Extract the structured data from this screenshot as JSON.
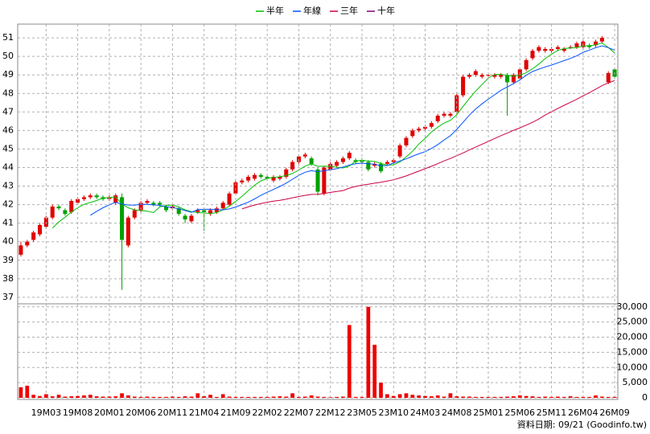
{
  "chart_data": [
    {
      "type": "candlestick",
      "open": [
        39.3,
        39.8,
        40.1,
        40.4,
        40.8,
        41.3,
        41.9,
        41.7,
        41.6,
        42.1,
        42.3,
        42.4,
        42.5,
        42.4,
        42.3,
        42.1,
        42.4,
        39.8,
        41.3,
        41.7,
        42.1,
        42.1,
        42.1,
        41.9,
        41.8,
        41.8,
        41.4,
        41.1,
        41.6,
        41.7,
        41.5,
        41.6,
        41.8,
        42.0,
        42.6,
        43.2,
        43.3,
        43.4,
        43.6,
        43.5,
        43.3,
        43.4,
        43.5,
        43.9,
        44.3,
        44.6,
        44.5,
        43.9,
        42.6,
        43.9,
        44.1,
        44.3,
        44.5,
        44.4,
        44.4,
        44.3,
        44.1,
        44.2,
        44.2,
        44.3,
        44.6,
        45.2,
        45.7,
        46.0,
        46.1,
        46.2,
        46.5,
        46.8,
        46.8,
        47.0,
        47.9,
        48.9,
        49.0,
        48.9,
        49.0,
        48.9,
        48.9,
        49.0,
        48.6,
        48.8,
        49.3,
        49.9,
        50.3,
        50.3,
        50.3,
        50.4,
        50.3,
        50.5,
        50.5,
        50.5,
        50.6,
        50.6,
        50.8,
        48.6,
        49.3
      ],
      "high": [
        40.0,
        40.1,
        40.6,
        41.0,
        41.4,
        42.0,
        42.0,
        41.8,
        42.3,
        42.4,
        42.5,
        42.6,
        42.6,
        42.5,
        42.5,
        42.6,
        42.6,
        41.4,
        41.8,
        42.2,
        42.3,
        42.2,
        42.2,
        42.0,
        42.0,
        41.9,
        41.5,
        41.5,
        41.8,
        41.8,
        41.8,
        41.9,
        42.2,
        42.7,
        43.3,
        43.4,
        43.6,
        43.7,
        43.7,
        43.6,
        43.6,
        43.6,
        44.0,
        44.4,
        44.7,
        44.8,
        44.6,
        44.0,
        44.1,
        44.3,
        44.4,
        44.6,
        44.9,
        44.5,
        44.5,
        44.4,
        44.3,
        44.3,
        44.4,
        44.5,
        45.3,
        45.7,
        46.1,
        46.2,
        46.3,
        46.5,
        46.9,
        47.0,
        47.0,
        48.0,
        49.0,
        49.1,
        49.3,
        49.1,
        49.1,
        49.1,
        49.1,
        49.1,
        49.1,
        49.4,
        49.9,
        50.4,
        50.6,
        50.5,
        50.5,
        50.6,
        50.5,
        50.6,
        50.8,
        50.9,
        50.7,
        50.9,
        51.1,
        49.2,
        49.4
      ],
      "low": [
        39.2,
        39.7,
        40.0,
        40.3,
        40.7,
        41.2,
        41.7,
        41.4,
        41.5,
        42.0,
        42.2,
        42.3,
        42.3,
        42.2,
        42.2,
        42.0,
        37.4,
        39.7,
        41.2,
        41.6,
        42.0,
        41.9,
        41.9,
        41.6,
        41.7,
        41.4,
        41.0,
        41.0,
        41.5,
        40.6,
        41.4,
        41.5,
        41.7,
        41.9,
        42.5,
        43.1,
        43.2,
        43.3,
        43.4,
        43.3,
        43.2,
        43.3,
        43.4,
        43.8,
        44.2,
        44.5,
        44.1,
        42.5,
        42.5,
        43.8,
        44.0,
        44.2,
        44.4,
        44.2,
        44.2,
        43.8,
        44.0,
        43.7,
        44.1,
        44.2,
        44.5,
        45.1,
        45.6,
        45.9,
        46.0,
        46.1,
        46.4,
        46.7,
        46.7,
        46.9,
        47.8,
        48.8,
        48.9,
        48.8,
        48.9,
        48.8,
        48.8,
        46.8,
        48.5,
        48.7,
        49.2,
        49.8,
        50.2,
        50.2,
        50.2,
        50.3,
        50.2,
        50.4,
        50.4,
        50.4,
        50.4,
        50.5,
        50.7,
        48.5,
        48.8
      ],
      "close": [
        39.8,
        40.0,
        40.5,
        40.9,
        41.3,
        41.9,
        41.8,
        41.5,
        42.2,
        42.3,
        42.4,
        42.5,
        42.4,
        42.3,
        42.4,
        42.5,
        40.1,
        41.3,
        41.7,
        42.1,
        42.2,
        42.0,
        42.0,
        41.7,
        41.9,
        41.5,
        41.2,
        41.4,
        41.7,
        41.6,
        41.7,
        41.8,
        42.1,
        42.6,
        43.2,
        43.3,
        43.5,
        43.6,
        43.5,
        43.4,
        43.5,
        43.5,
        43.9,
        44.3,
        44.6,
        44.7,
        44.2,
        42.7,
        44.0,
        44.2,
        44.3,
        44.5,
        44.8,
        44.3,
        44.3,
        43.9,
        44.2,
        43.8,
        44.3,
        44.4,
        45.2,
        45.6,
        46.0,
        46.1,
        46.2,
        46.4,
        46.8,
        46.9,
        46.9,
        47.9,
        48.9,
        49.0,
        49.2,
        49.0,
        49.0,
        49.0,
        49.0,
        48.6,
        49.0,
        49.3,
        49.8,
        50.3,
        50.5,
        50.4,
        50.4,
        50.5,
        50.4,
        50.5,
        50.7,
        50.8,
        50.5,
        50.8,
        51.0,
        49.1,
        48.9
      ],
      "up_color": "#e00000",
      "down_color": "#00a000",
      "series": [
        {
          "name": "半年",
          "color": "#00c000",
          "values": [
            null,
            null,
            null,
            null,
            null,
            40.73,
            41.07,
            41.32,
            41.6,
            41.83,
            42.02,
            42.12,
            42.22,
            42.35,
            42.38,
            42.42,
            42.03,
            41.83,
            41.72,
            41.68,
            41.65,
            41.57,
            41.88,
            41.95,
            41.98,
            41.88,
            41.72,
            41.62,
            41.57,
            41.55,
            41.52,
            41.57,
            41.72,
            41.92,
            42.17,
            42.45,
            42.75,
            43.05,
            43.28,
            43.42,
            43.47,
            43.5,
            43.57,
            43.68,
            43.87,
            44.08,
            44.2,
            44.07,
            44.08,
            44.07,
            44.02,
            43.98,
            44.08,
            44.35,
            44.4,
            44.35,
            44.33,
            44.22,
            44.13,
            44.15,
            44.3,
            44.58,
            44.88,
            45.27,
            45.58,
            45.92,
            46.18,
            46.4,
            46.55,
            46.85,
            47.3,
            47.73,
            48.13,
            48.48,
            48.83,
            49.02,
            49.03,
            48.97,
            48.93,
            48.98,
            49.12,
            49.33,
            49.58,
            49.88,
            50.12,
            50.32,
            50.42,
            50.45,
            50.48,
            50.55,
            50.57,
            50.62,
            50.72,
            50.48,
            50.18
          ]
        },
        {
          "name": "年線",
          "color": "#0050ff",
          "values": [
            null,
            null,
            null,
            null,
            null,
            null,
            null,
            null,
            null,
            null,
            null,
            41.43,
            41.64,
            41.83,
            41.99,
            42.13,
            42.03,
            41.98,
            41.97,
            42.02,
            42.02,
            41.99,
            41.96,
            41.89,
            41.85,
            41.78,
            41.68,
            41.59,
            41.73,
            41.75,
            41.75,
            41.73,
            41.72,
            41.77,
            41.87,
            42.0,
            42.13,
            42.31,
            42.5,
            42.67,
            42.82,
            42.98,
            43.16,
            43.37,
            43.58,
            43.75,
            43.83,
            43.78,
            43.83,
            43.88,
            43.94,
            44.03,
            44.14,
            44.21,
            44.24,
            44.21,
            44.18,
            44.1,
            44.11,
            44.25,
            44.35,
            44.47,
            44.61,
            44.74,
            44.86,
            45.03,
            45.24,
            45.49,
            45.72,
            46.06,
            46.44,
            46.83,
            47.16,
            47.44,
            47.69,
            47.93,
            48.17,
            48.35,
            48.53,
            48.73,
            48.98,
            49.18,
            49.31,
            49.43,
            49.53,
            49.65,
            49.77,
            49.89,
            50.03,
            50.22,
            50.34,
            50.47,
            50.57,
            50.47,
            50.33
          ]
        },
        {
          "name": "三年",
          "color": "#cc0044",
          "values": [
            null,
            null,
            null,
            null,
            null,
            null,
            null,
            null,
            null,
            null,
            null,
            null,
            null,
            null,
            null,
            null,
            null,
            null,
            null,
            null,
            null,
            null,
            null,
            null,
            null,
            null,
            null,
            null,
            null,
            null,
            null,
            null,
            null,
            null,
            null,
            41.77,
            41.88,
            41.98,
            42.06,
            42.13,
            42.19,
            42.23,
            42.29,
            42.37,
            42.44,
            42.5,
            42.55,
            42.56,
            42.6,
            42.66,
            42.71,
            42.76,
            42.89,
            42.98,
            43.05,
            43.1,
            43.16,
            43.21,
            43.27,
            43.34,
            43.44,
            43.55,
            43.68,
            43.81,
            43.94,
            44.07,
            44.21,
            44.36,
            44.49,
            44.64,
            44.79,
            44.95,
            45.11,
            45.26,
            45.41,
            45.57,
            45.72,
            45.86,
            46.01,
            46.14,
            46.29,
            46.44,
            46.62,
            46.83,
            47.01,
            47.19,
            47.36,
            47.52,
            47.69,
            47.87,
            48.04,
            48.23,
            48.42,
            48.57,
            48.69
          ]
        },
        {
          "name": "十年",
          "color": "#800080",
          "values": [
            null,
            null,
            null,
            null,
            null,
            null,
            null,
            null,
            null,
            null,
            null,
            null,
            null,
            null,
            null,
            null,
            null,
            null,
            null,
            null,
            null,
            null,
            null,
            null,
            null,
            null,
            null,
            null,
            null,
            null,
            null,
            null,
            null,
            null,
            null,
            null,
            null,
            null,
            null,
            null,
            null,
            null,
            null,
            null,
            null,
            null,
            null,
            null,
            null,
            null,
            null,
            null,
            null,
            null,
            null,
            null,
            null,
            null,
            null,
            null,
            null,
            null,
            null,
            null,
            null,
            null,
            null,
            null,
            null,
            null,
            null,
            null,
            null,
            null,
            null,
            null,
            null,
            null,
            null,
            null,
            null,
            null,
            null,
            null,
            null,
            null,
            null,
            null,
            null,
            null,
            null,
            null,
            null,
            null,
            null
          ]
        }
      ],
      "ylim": [
        36.65,
        51.74
      ],
      "yticks": [
        37,
        38,
        39,
        40,
        41,
        42,
        43,
        44,
        45,
        46,
        47,
        48,
        49,
        50,
        51
      ],
      "yaxis": "left",
      "grid": true,
      "legend": "top"
    },
    {
      "type": "bar",
      "categories": [
        null,
        null,
        null,
        null,
        "19M03",
        null,
        null,
        null,
        null,
        "19M08",
        null,
        null,
        null,
        null,
        "20M01",
        null,
        null,
        null,
        null,
        "20M06",
        null,
        null,
        null,
        null,
        "20M11",
        null,
        null,
        null,
        null,
        "21M04",
        null,
        null,
        null,
        null,
        "21M09",
        null,
        null,
        null,
        null,
        "22M02",
        null,
        null,
        null,
        null,
        "22M07",
        null,
        null,
        null,
        null,
        "22M12",
        null,
        null,
        null,
        null,
        "23M05",
        null,
        null,
        null,
        null,
        "23M10",
        null,
        null,
        null,
        null,
        "24M03",
        null,
        null,
        null,
        null,
        "24M08",
        null,
        null,
        null,
        null,
        "25M01",
        null,
        null,
        null,
        null,
        "25M06",
        null,
        null,
        null,
        null,
        "25M11",
        null,
        null,
        null,
        null,
        "26M04",
        null,
        null,
        null,
        null,
        "26M09"
      ],
      "values": [
        3500,
        4000,
        1000,
        600,
        1200,
        500,
        1000,
        400,
        500,
        600,
        800,
        1000,
        500,
        400,
        400,
        500,
        1500,
        800,
        400,
        300,
        400,
        300,
        300,
        300,
        400,
        300,
        500,
        400,
        1500,
        500,
        1000,
        300,
        1200,
        400,
        300,
        300,
        300,
        300,
        300,
        300,
        400,
        500,
        400,
        1500,
        300,
        400,
        800,
        400,
        300,
        200,
        300,
        400,
        24000,
        300,
        300,
        30000,
        17500,
        5000,
        1200,
        600,
        1200,
        1500,
        1000,
        800,
        600,
        500,
        800,
        400,
        1500,
        500,
        400,
        400,
        300,
        300,
        300,
        300,
        300,
        400,
        500,
        800,
        600,
        500,
        300,
        400,
        300,
        400,
        300,
        500,
        300,
        300,
        300,
        800,
        400,
        300,
        300
      ],
      "color": "#ee0000",
      "ylim": [
        0,
        31000
      ],
      "yticks": [
        0,
        {
          "value": 5000,
          "label": "5,000"
        },
        {
          "value": 10000,
          "label": "10,000"
        },
        {
          "value": 15000,
          "label": "15,000"
        },
        {
          "value": 20000,
          "label": "20,000"
        },
        {
          "value": 25000,
          "label": "25,000"
        },
        {
          "value": 30000,
          "label": "30,000"
        }
      ],
      "yaxis": "right",
      "grid": true,
      "source": "資料日期: 09/21 (Goodinfo.tw)"
    }
  ]
}
